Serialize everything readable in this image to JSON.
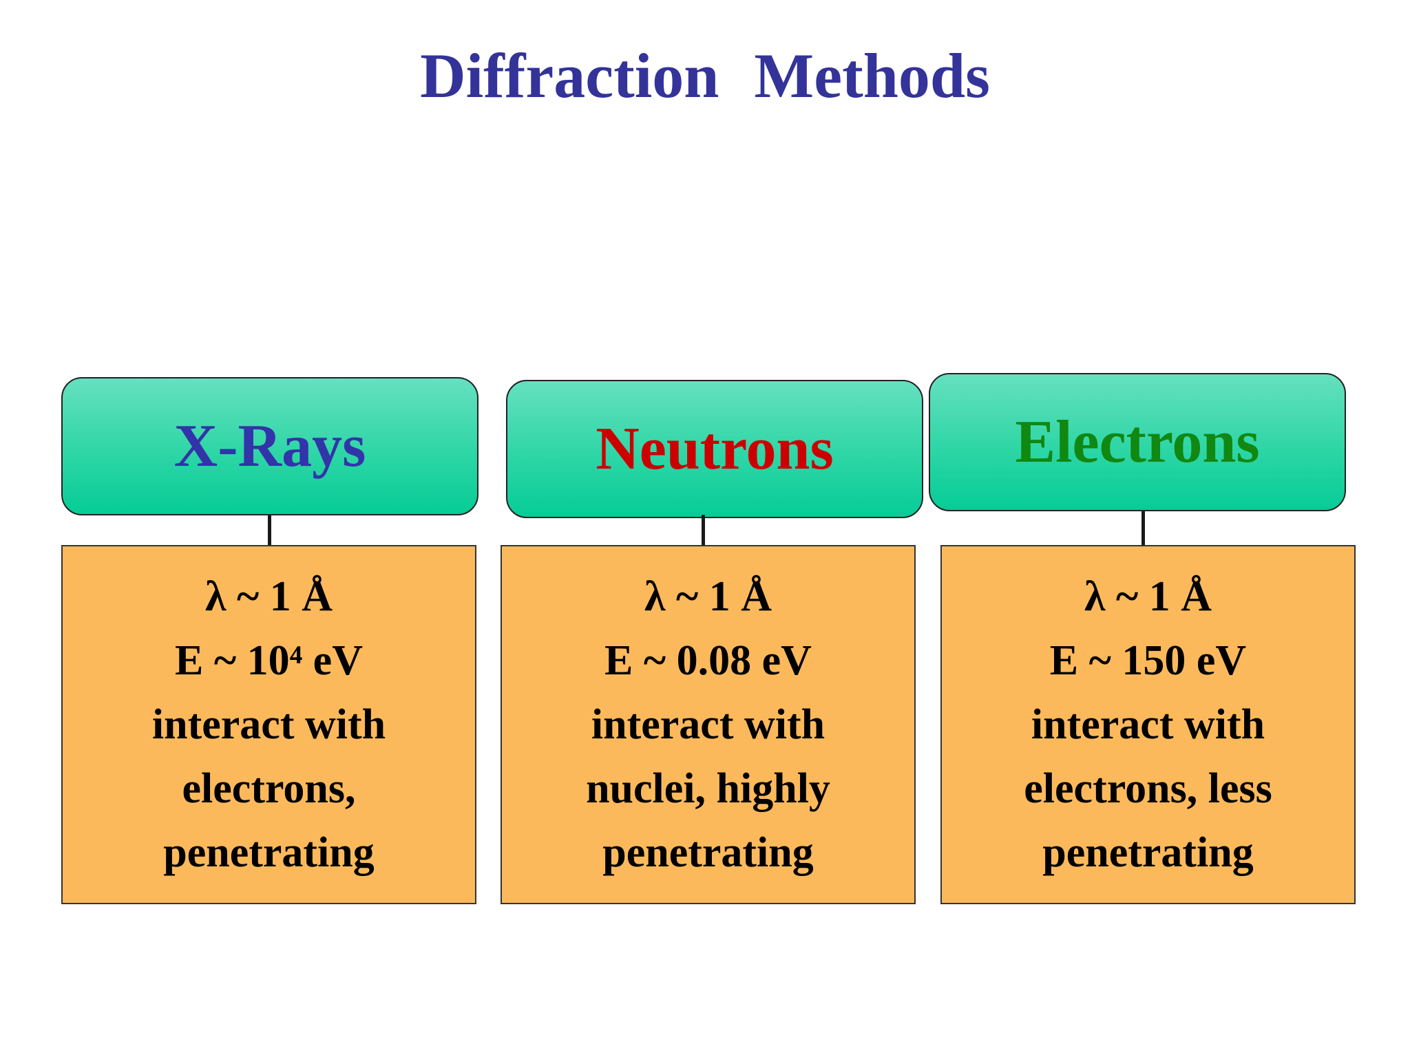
{
  "title": "Diffraction  Methods",
  "colors": {
    "title": "#333399",
    "header_fill": "#1fd3a0",
    "detail_fill": "#fcb95c",
    "xrays": "#3333aa",
    "neutrons": "#cc0000",
    "electrons": "#118811"
  },
  "columns": [
    {
      "name": "X-Rays",
      "lines": [
        "λ ~ 1 Å",
        "E ~ 10⁴ eV",
        "interact with",
        "electrons,",
        "penetrating"
      ]
    },
    {
      "name": "Neutrons",
      "lines": [
        "λ ~ 1 Å",
        "E ~ 0.08 eV",
        "interact with",
        "nuclei, highly",
        "penetrating"
      ]
    },
    {
      "name": "Electrons",
      "lines": [
        "λ ~ 1 Å",
        "E ~ 150 eV",
        "interact with",
        "electrons, less",
        "penetrating"
      ]
    }
  ]
}
